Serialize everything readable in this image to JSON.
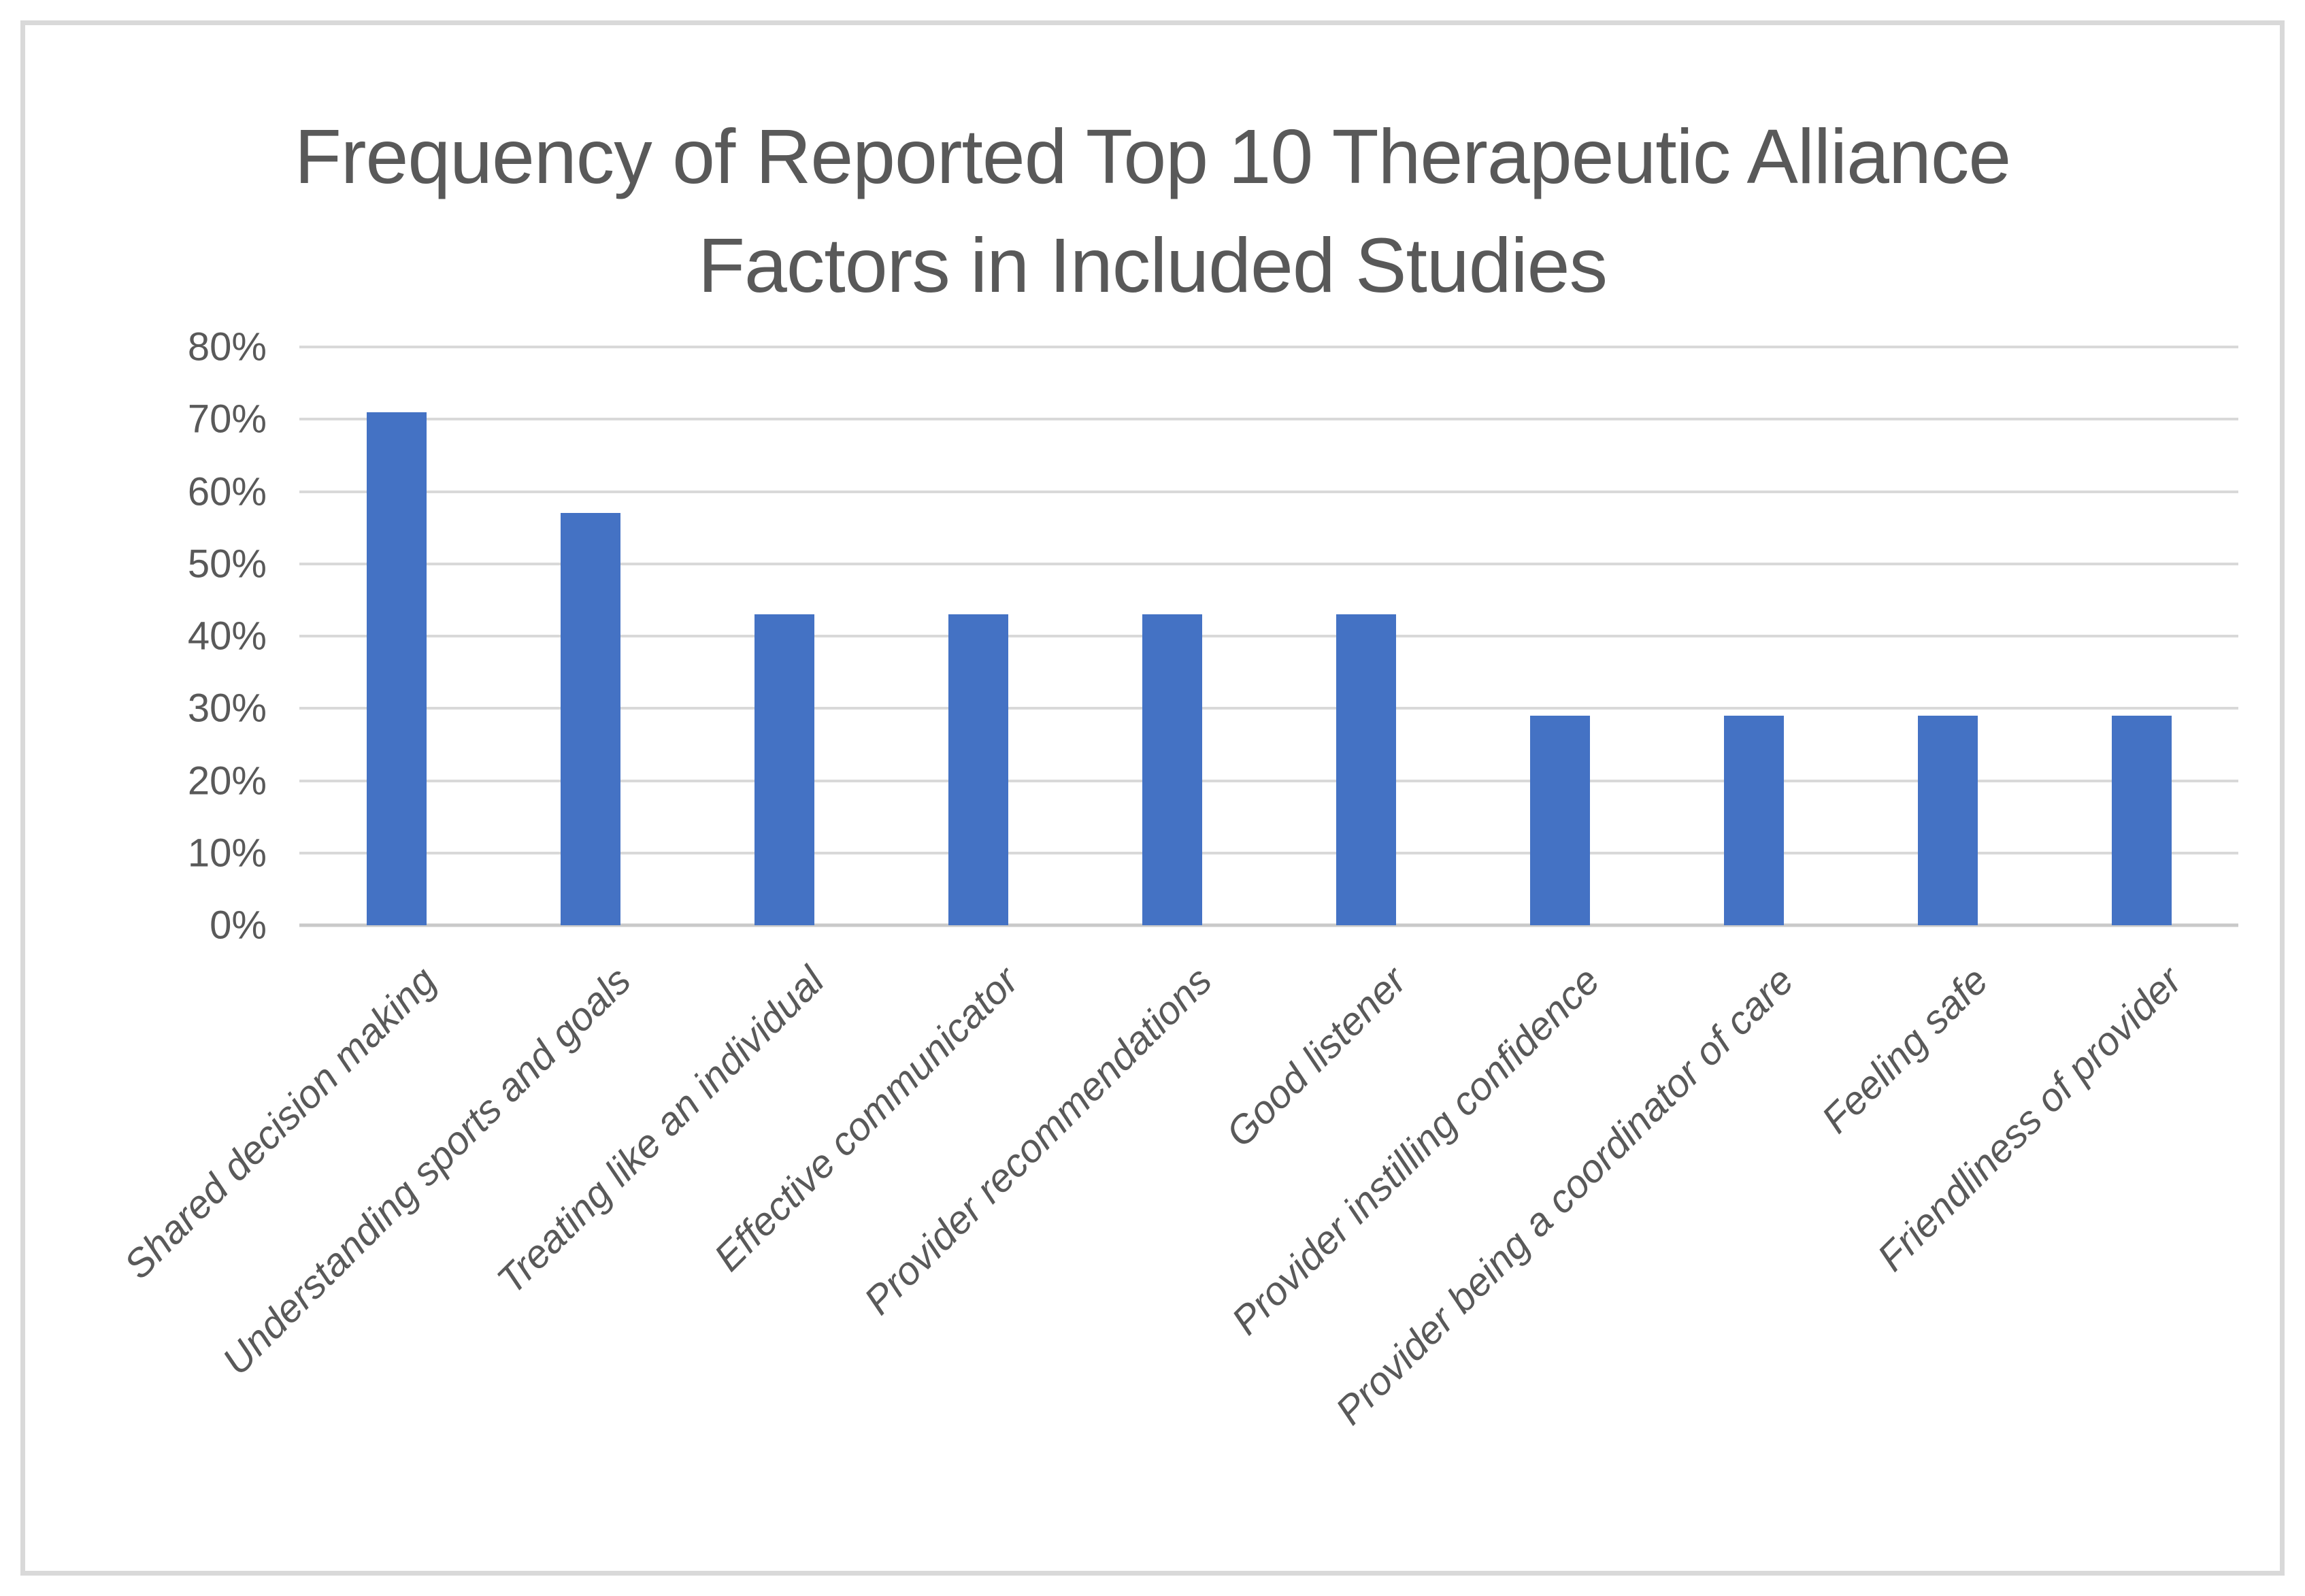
{
  "chart_data": {
    "type": "bar",
    "title": "Frequency of Reported Top 10 Therapeutic Alliance Factors in Included Studies",
    "title_lines": [
      "Frequency of Reported Top 10 Therapeutic Alliance",
      "Factors in Included Studies"
    ],
    "categories": [
      "Shared decision making",
      "Understanding sports and goals",
      "Treating like an individual",
      "Effective communicator",
      "Provider recommendations",
      "Good listener",
      "Provider instilling confidence",
      "Provider being a coordinator of care",
      "Feeling safe",
      "Friendliness of provider"
    ],
    "values": [
      71,
      57,
      43,
      43,
      43,
      43,
      29,
      29,
      29,
      29
    ],
    "unit": "%",
    "xlabel": "",
    "ylabel": "",
    "ylim": [
      0,
      80
    ],
    "ytick_step": 10,
    "ytick_labels": [
      "0%",
      "10%",
      "20%",
      "30%",
      "40%",
      "50%",
      "60%",
      "70%",
      "80%"
    ],
    "grid": true,
    "legend": "none",
    "colors": {
      "bar": "#4472c4",
      "gridline": "#d9d9d9",
      "axis_line": "#c9c9c9",
      "text": "#595959",
      "frame_border": "#d9d9d9",
      "background": "#ffffff"
    }
  }
}
